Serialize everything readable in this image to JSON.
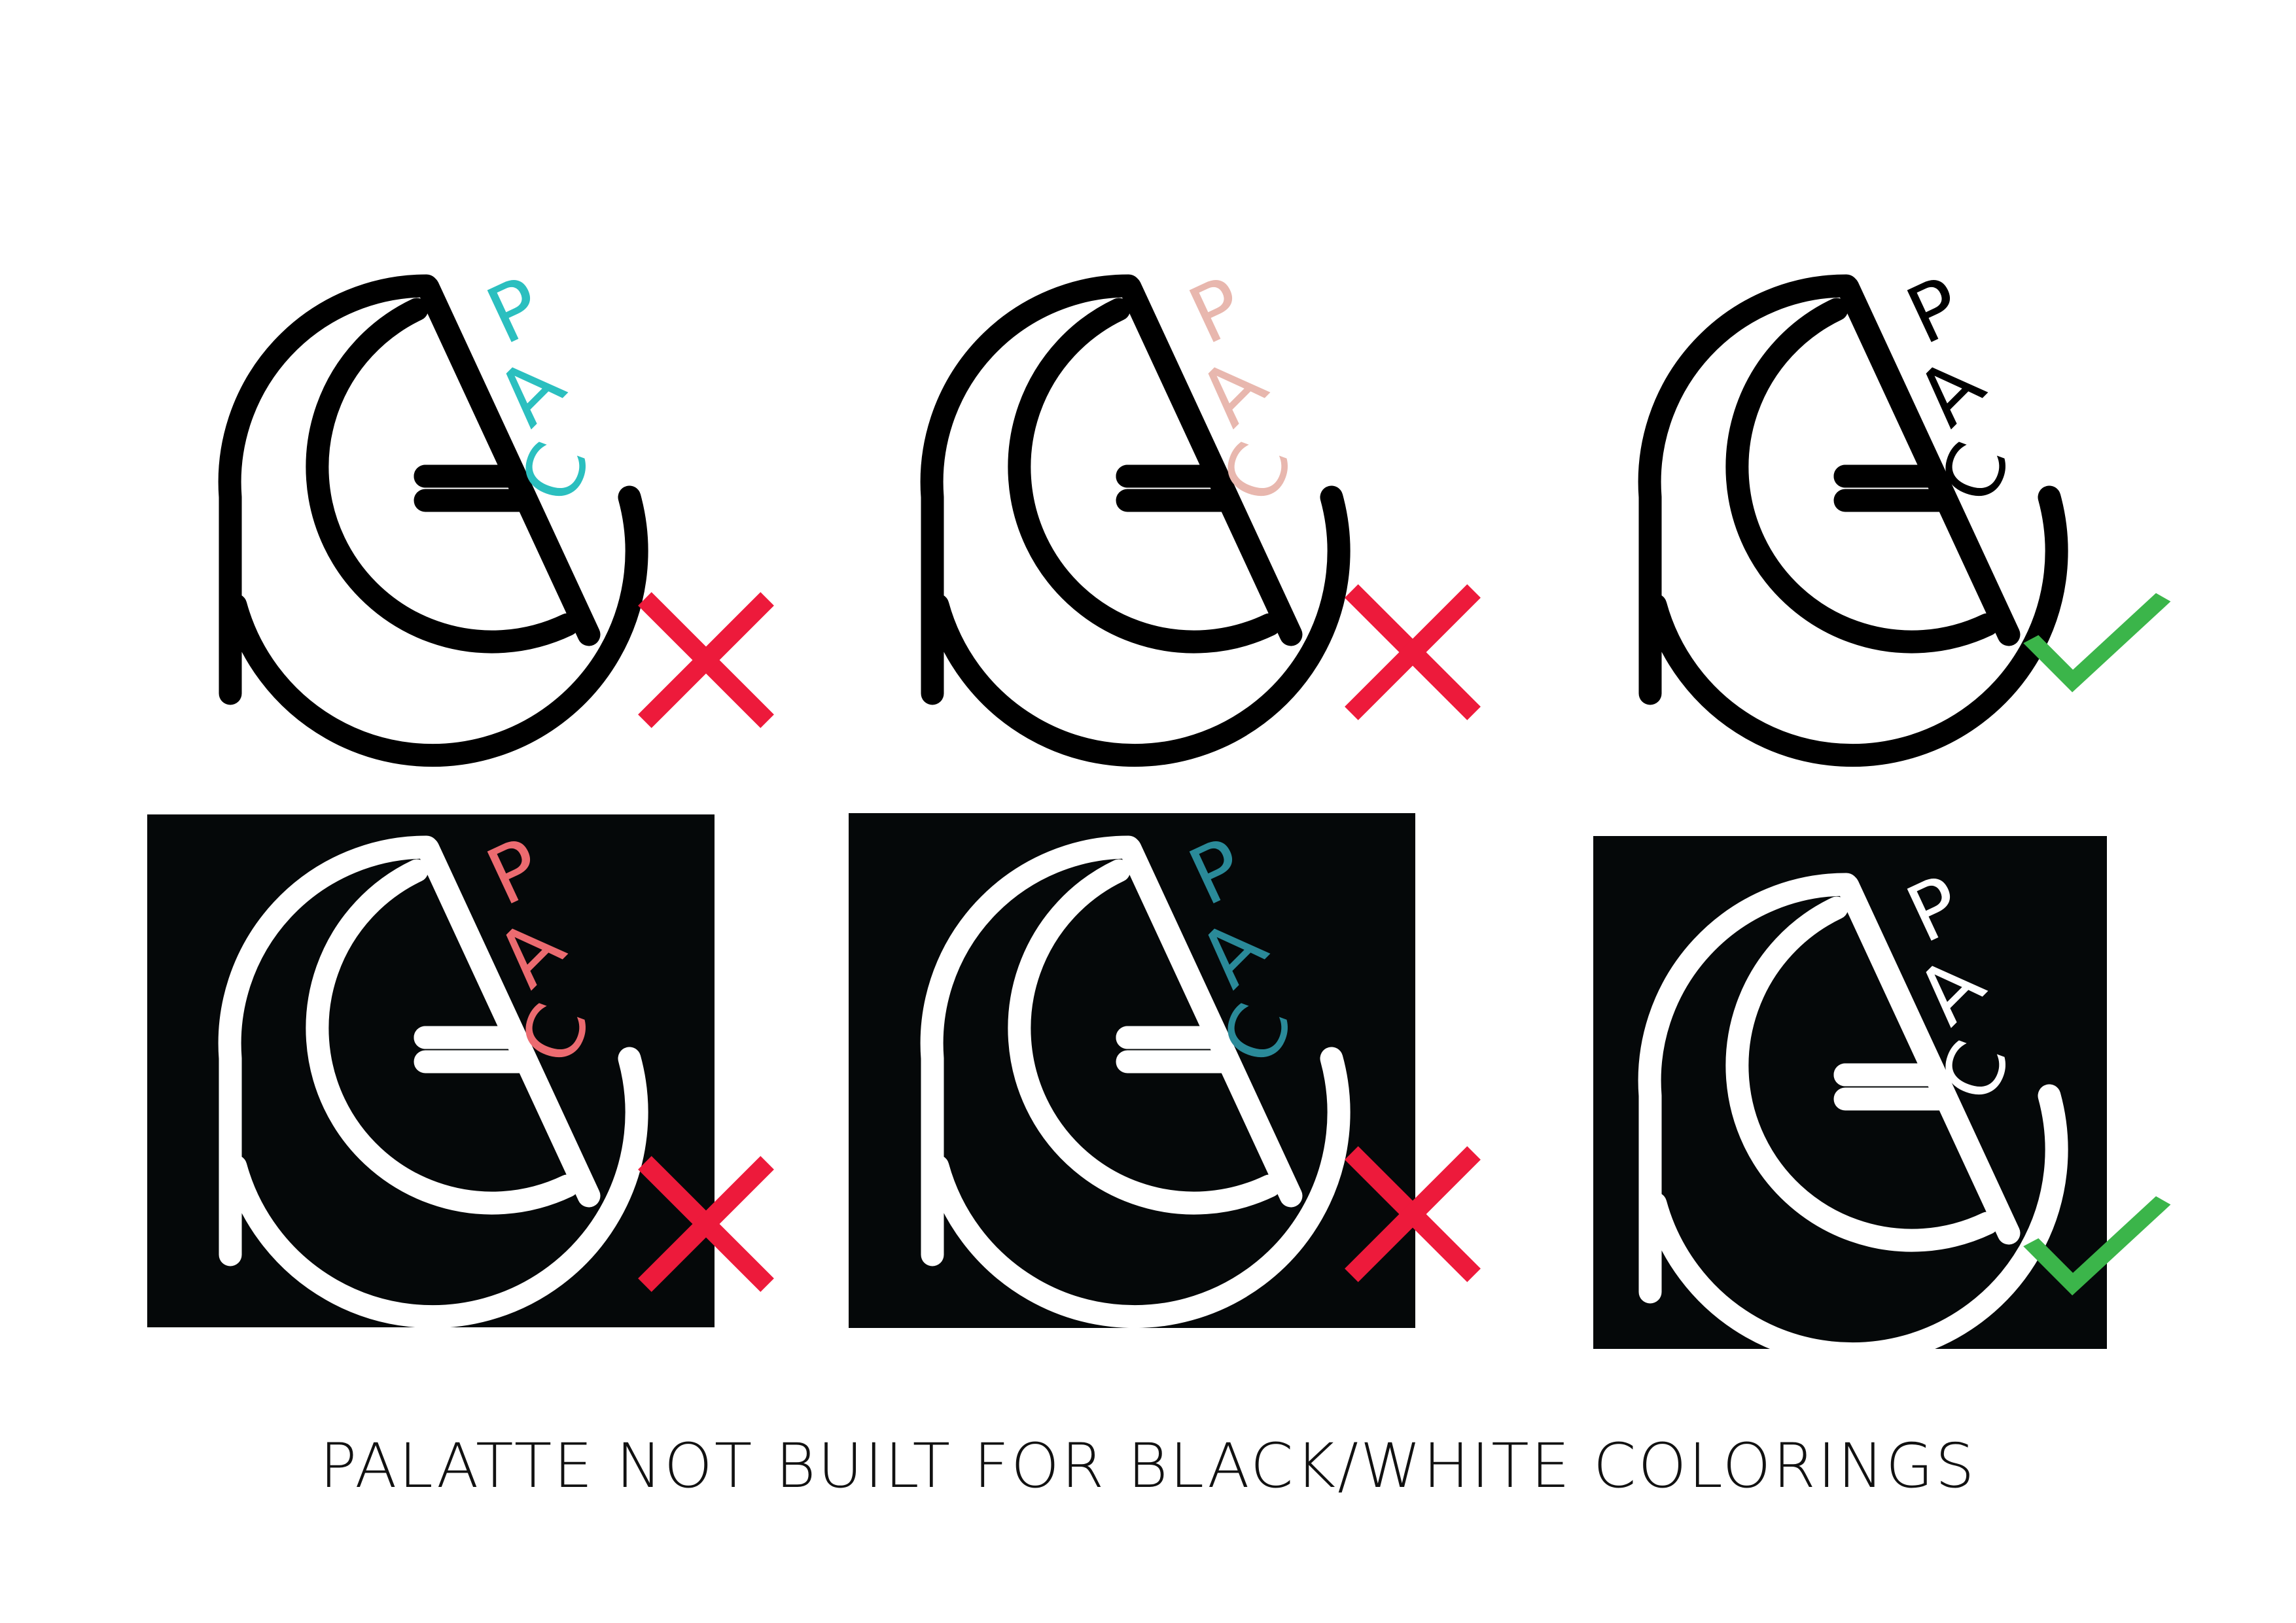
{
  "caption": "PALATTE NOT BUILT FOR BLACK/WHITE COLORINGS",
  "brand_letters": [
    "P",
    "A",
    "C"
  ],
  "colors": {
    "page_background": "#ffffff",
    "panel_background": "#050809",
    "reject_mark": "#ed1a3b",
    "approve_mark": "#3bb54a"
  },
  "variants": [
    {
      "id": "light-teal",
      "row": "light",
      "mark_color": "#000000",
      "letters_color": "#2bbfbf",
      "verdict": "reject",
      "verdict_icon": "cross-icon"
    },
    {
      "id": "light-blush",
      "row": "light",
      "mark_color": "#000000",
      "letters_color": "#e8b7ae",
      "verdict": "reject",
      "verdict_icon": "cross-icon"
    },
    {
      "id": "light-black",
      "row": "light",
      "mark_color": "#000000",
      "letters_color": "#000000",
      "verdict": "approve",
      "verdict_icon": "check-icon"
    },
    {
      "id": "dark-coral",
      "row": "dark",
      "mark_color": "#ffffff",
      "letters_color": "#ec6b70",
      "verdict": "reject",
      "verdict_icon": "cross-icon"
    },
    {
      "id": "dark-teal",
      "row": "dark",
      "mark_color": "#ffffff",
      "letters_color": "#2a8a99",
      "verdict": "reject",
      "verdict_icon": "cross-icon"
    },
    {
      "id": "dark-white",
      "row": "dark",
      "mark_color": "#ffffff",
      "letters_color": "#ffffff",
      "verdict": "approve",
      "verdict_icon": "check-icon"
    }
  ]
}
